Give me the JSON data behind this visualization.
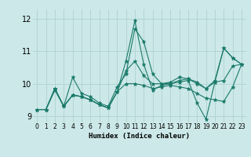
{
  "xlabel": "Humidex (Indice chaleur)",
  "xlim": [
    -0.5,
    23.5
  ],
  "ylim": [
    8.8,
    12.3
  ],
  "yticks": [
    9,
    10,
    11,
    12
  ],
  "xticks": [
    0,
    1,
    2,
    3,
    4,
    5,
    6,
    7,
    8,
    9,
    10,
    11,
    12,
    13,
    14,
    15,
    16,
    17,
    18,
    19,
    20,
    21,
    22,
    23
  ],
  "bg_color": "#cce8e8",
  "grid_color": "#aacece",
  "line_color": "#1a7a6a",
  "lines": [
    [
      9.2,
      9.2,
      9.8,
      9.3,
      10.2,
      9.7,
      9.6,
      9.4,
      9.3,
      9.9,
      10.3,
      11.7,
      11.3,
      10.3,
      10.0,
      10.05,
      10.2,
      10.15,
      10.0,
      9.85,
      10.1,
      11.1,
      10.8,
      10.6
    ],
    [
      9.2,
      9.2,
      9.85,
      9.3,
      9.65,
      9.6,
      9.5,
      9.35,
      9.25,
      9.75,
      10.7,
      11.95,
      10.6,
      9.8,
      9.95,
      10.0,
      10.05,
      10.1,
      9.4,
      8.9,
      10.05,
      11.1,
      10.8,
      10.6
    ],
    [
      9.2,
      9.2,
      9.85,
      9.3,
      9.65,
      9.6,
      9.5,
      9.35,
      9.25,
      9.75,
      10.4,
      10.7,
      10.25,
      10.0,
      10.0,
      10.0,
      10.1,
      10.15,
      10.05,
      9.85,
      10.05,
      10.1,
      10.55,
      10.6
    ],
    [
      9.2,
      9.2,
      9.85,
      9.3,
      9.65,
      9.6,
      9.5,
      9.35,
      9.25,
      9.75,
      10.0,
      10.0,
      9.95,
      9.85,
      9.9,
      9.95,
      9.9,
      9.85,
      9.7,
      9.55,
      9.5,
      9.45,
      9.9,
      10.6
    ]
  ]
}
